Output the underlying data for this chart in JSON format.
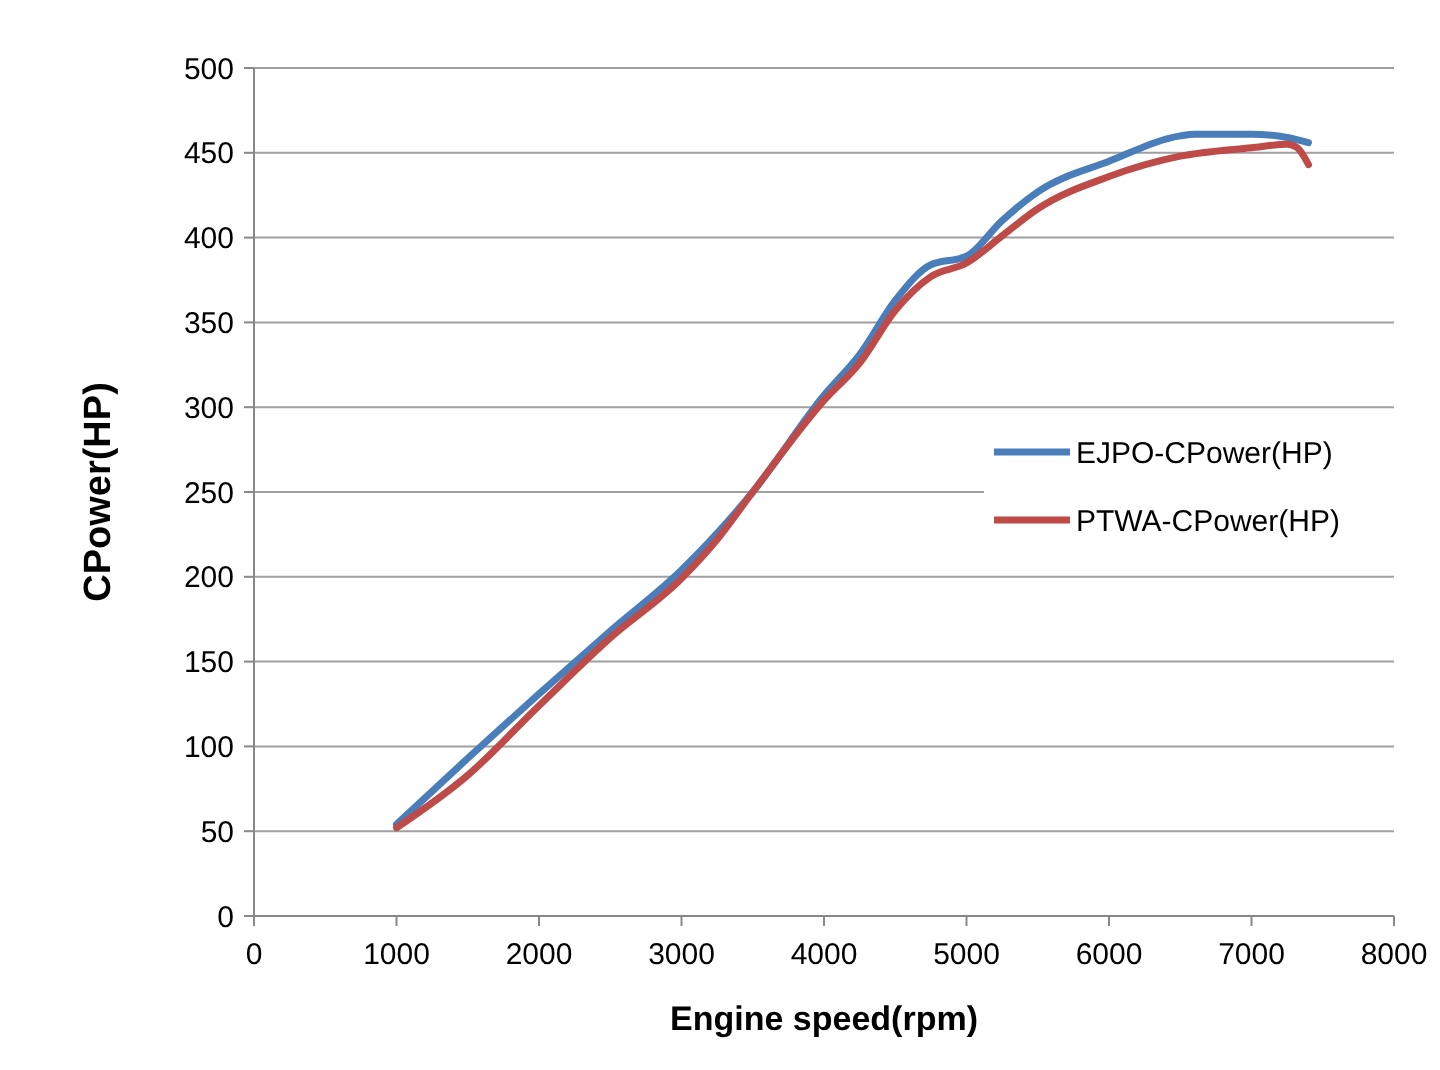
{
  "chart_data": {
    "type": "line",
    "xlabel": "Engine speed(rpm)",
    "ylabel": "CPower(HP)",
    "xlim": [
      0,
      8000
    ],
    "xticks": [
      0,
      1000,
      2000,
      3000,
      4000,
      5000,
      6000,
      7000,
      8000
    ],
    "ylim": [
      0,
      500
    ],
    "yticks": [
      0,
      50,
      100,
      150,
      200,
      250,
      300,
      350,
      400,
      450,
      500
    ],
    "grid": "y",
    "legend": "right",
    "marker": "none",
    "line_style": "solid",
    "series": [
      {
        "name": "EJPO-CPower(HP)",
        "color": "#4a7ebb",
        "x": [
          1000,
          1500,
          2000,
          2500,
          3000,
          3500,
          4000,
          4250,
          4500,
          4750,
          5000,
          5250,
          5500,
          6000,
          6500,
          6600,
          7000,
          7250,
          7400
        ],
        "values": [
          54,
          93,
          131,
          168,
          204,
          250,
          307,
          331,
          363,
          384,
          389,
          410,
          427,
          445,
          460,
          461,
          461,
          459,
          456
        ]
      },
      {
        "name": "PTWA-CPower(HP)",
        "color": "#be4b48",
        "x": [
          1000,
          1500,
          2000,
          2500,
          3000,
          3250,
          3500,
          4000,
          4250,
          4500,
          4750,
          5000,
          5250,
          5500,
          6000,
          6500,
          7000,
          7250,
          7320,
          7400
        ],
        "values": [
          52,
          83,
          124,
          164,
          199,
          222,
          250,
          304,
          326,
          357,
          377,
          385,
          401,
          417,
          436,
          448,
          453,
          455,
          453,
          443
        ]
      }
    ]
  }
}
